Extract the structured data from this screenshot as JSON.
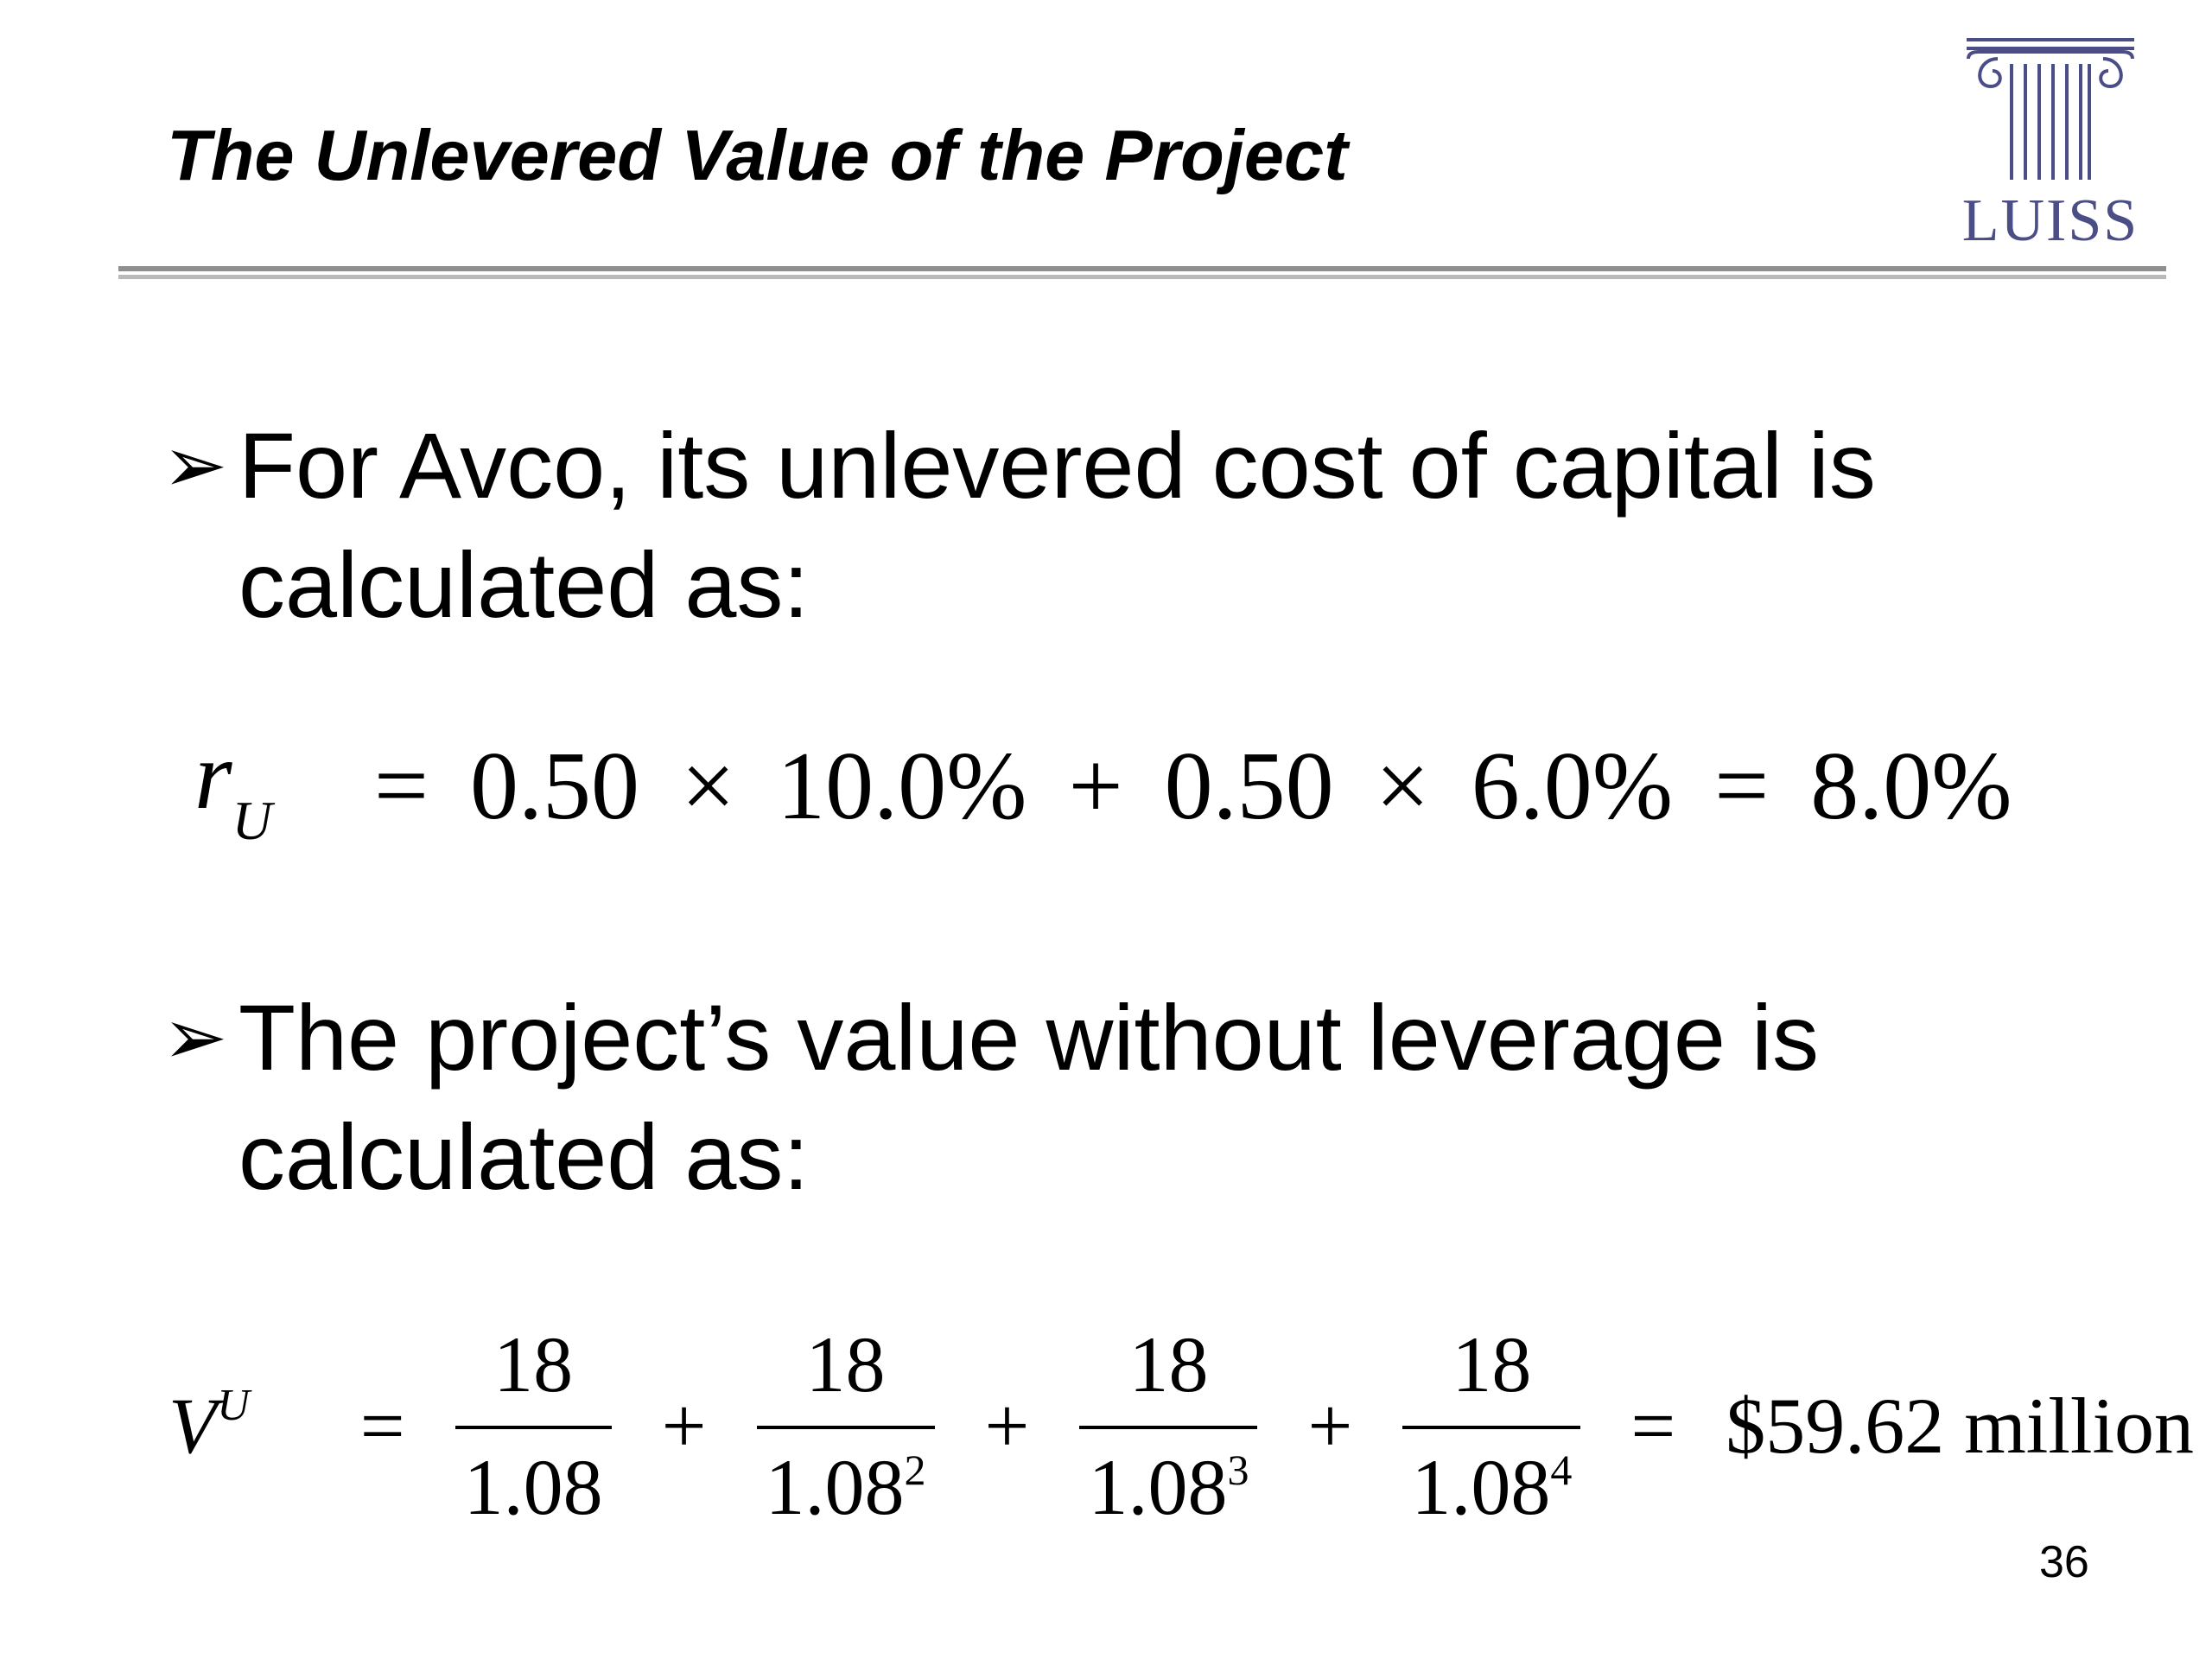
{
  "header": {
    "title": "The Unlevered Value of the Project",
    "logo_text": "LUISS",
    "logo_color": "#4b4d86"
  },
  "bullets": [
    {
      "marker": "➢",
      "text": "For Avco, its unlevered cost of capital is calculated as:"
    },
    {
      "marker": "➢",
      "text": "The project’s value without leverage is calculated as:"
    }
  ],
  "equation1": {
    "var": "r",
    "var_sub": "U",
    "equals": "=",
    "w1": "0.50",
    "times": "×",
    "r1": "10.0%",
    "plus": "+",
    "w2": "0.50",
    "r2": "6.0%",
    "result": "8.0%"
  },
  "equation2": {
    "var": "V",
    "var_sup": "U",
    "equals": "=",
    "plus": "+",
    "terms": [
      {
        "num": "18",
        "den": "1.08",
        "exp": ""
      },
      {
        "num": "18",
        "den": "1.08",
        "exp": "2"
      },
      {
        "num": "18",
        "den": "1.08",
        "exp": "3"
      },
      {
        "num": "18",
        "den": "1.08",
        "exp": "4"
      }
    ],
    "result": "$59.62 million"
  },
  "footer": {
    "page_number": "36"
  }
}
